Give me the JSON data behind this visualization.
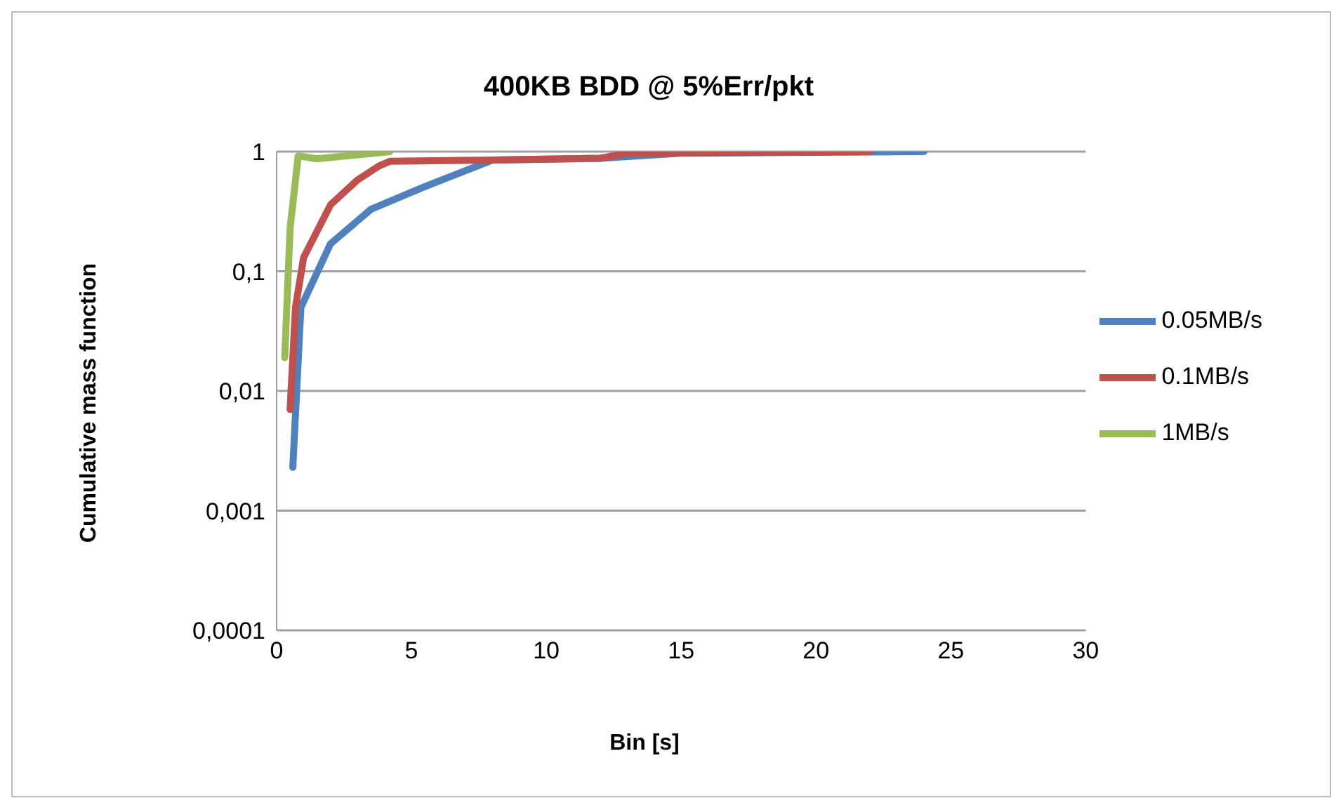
{
  "chart_data": {
    "type": "line",
    "title": "400KB BDD @ 5%Err/pkt",
    "xlabel": "Bin [s]",
    "ylabel": "Cumulative mass function",
    "xlim": [
      0,
      30
    ],
    "xticks": [
      0,
      5,
      10,
      15,
      20,
      25,
      30
    ],
    "ylim": [
      0.0001,
      1
    ],
    "yticks": [
      {
        "value": 0.0001,
        "label": "0,0001"
      },
      {
        "value": 0.001,
        "label": "0,001"
      },
      {
        "value": 0.01,
        "label": "0,01"
      },
      {
        "value": 0.1,
        "label": "0,1"
      },
      {
        "value": 1,
        "label": "1"
      }
    ],
    "log": "y",
    "grid": "y",
    "legend": "right",
    "marker": "none",
    "line_style": "solid",
    "series": [
      {
        "name": "0.05MB/s",
        "color": "#4f81bd",
        "x": [
          0.6,
          0.9,
          2,
          3.5,
          5.4,
          8,
          12,
          15,
          24
        ],
        "values": [
          0.0023,
          0.05,
          0.17,
          0.33,
          0.5,
          0.85,
          0.88,
          0.97,
          1
        ]
      },
      {
        "name": "0.1MB/s",
        "color": "#c0504d",
        "x": [
          0.5,
          0.7,
          1,
          2,
          3,
          3.8,
          4.2,
          8,
          12,
          13,
          22
        ],
        "values": [
          0.007,
          0.05,
          0.13,
          0.36,
          0.58,
          0.76,
          0.83,
          0.85,
          0.88,
          0.97,
          1
        ]
      },
      {
        "name": "1MB/s",
        "color": "#9bbb59",
        "x": [
          0.3,
          0.5,
          0.8,
          1.5,
          4.2
        ],
        "values": [
          0.019,
          0.23,
          0.92,
          0.87,
          1
        ]
      }
    ]
  }
}
